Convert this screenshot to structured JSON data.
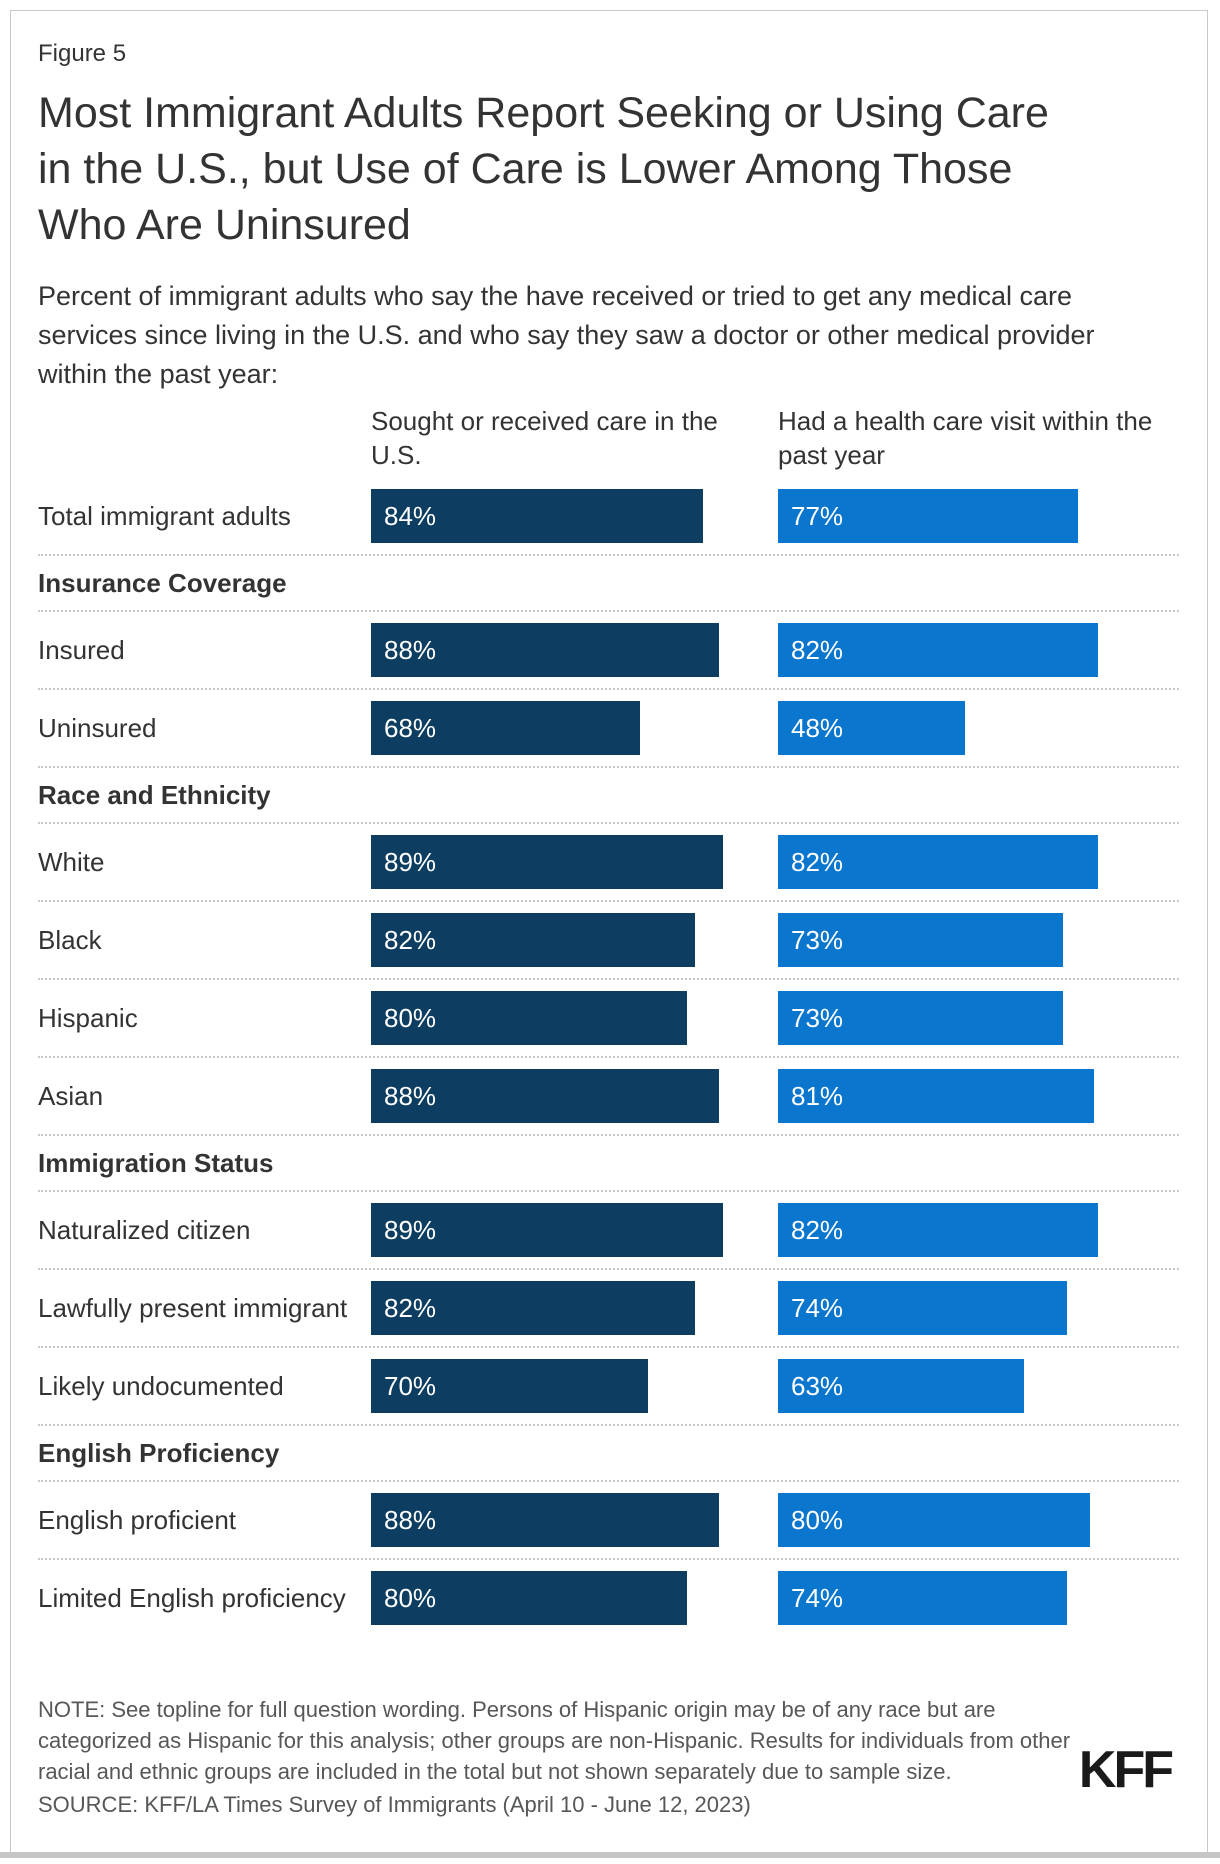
{
  "figure_label": "Figure 5",
  "title": "Most Immigrant Adults Report Seeking or Using Care\nin the U.S., but Use of Care is Lower Among Those\nWho Are Uninsured",
  "subtitle": "Percent of immigrant adults who say the have received or tried to get any medical care\nservices since living in the U.S. and who say they saw a doctor or other medical provider\nwithin the past year:",
  "chart_data": {
    "type": "bar",
    "orientation": "horizontal",
    "unit": "percent",
    "axis_range": [
      0,
      100
    ],
    "grid": false,
    "value_labels": "inside-left, white",
    "series": [
      {
        "name": "Sought or received care in the U.S.",
        "header_display": "Sought or received care in the\nU.S.",
        "color": "#0D3E62"
      },
      {
        "name": "Had a health care visit within the past year",
        "header_display": "Had a health care visit within the\npast year",
        "color": "#0B76CE"
      }
    ],
    "rows": [
      {
        "kind": "bar",
        "label": "Total immigrant adults",
        "values": [
          84,
          77
        ]
      },
      {
        "kind": "section",
        "label": "Insurance Coverage"
      },
      {
        "kind": "bar",
        "label": "Insured",
        "values": [
          88,
          82
        ]
      },
      {
        "kind": "bar",
        "label": "Uninsured",
        "values": [
          68,
          48
        ]
      },
      {
        "kind": "section",
        "label": "Race and Ethnicity"
      },
      {
        "kind": "bar",
        "label": "White",
        "values": [
          89,
          82
        ]
      },
      {
        "kind": "bar",
        "label": "Black",
        "values": [
          82,
          73
        ]
      },
      {
        "kind": "bar",
        "label": "Hispanic",
        "values": [
          80,
          73
        ]
      },
      {
        "kind": "bar",
        "label": "Asian",
        "values": [
          88,
          81
        ]
      },
      {
        "kind": "section",
        "label": "Immigration Status"
      },
      {
        "kind": "bar",
        "label": "Naturalized citizen",
        "values": [
          89,
          82
        ]
      },
      {
        "kind": "bar",
        "label": "Lawfully present immigrant",
        "values": [
          82,
          74
        ]
      },
      {
        "kind": "bar",
        "label": "Likely undocumented",
        "values": [
          70,
          63
        ]
      },
      {
        "kind": "section",
        "label": "English Proficiency"
      },
      {
        "kind": "bar",
        "label": "English proficient",
        "values": [
          88,
          80
        ]
      },
      {
        "kind": "bar",
        "label": "Limited English proficiency",
        "values": [
          80,
          74
        ]
      }
    ]
  },
  "footer": {
    "note": "NOTE: See topline for full question wording. Persons of Hispanic origin may be of any race but are\ncategorized as Hispanic for this analysis; other groups are non-Hispanic. Results for individuals from other\nracial and ethnic groups are included in the total but not shown separately due to sample size.",
    "source": "SOURCE: KFF/LA Times Survey of Immigrants (April 10 - June 12, 2023)",
    "logo_text": "KFF"
  }
}
